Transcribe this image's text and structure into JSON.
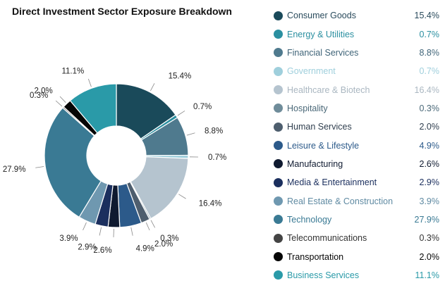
{
  "chart_data": {
    "type": "pie",
    "title": "Direct Investment Sector Exposure Breakdown",
    "donut": true,
    "slices": [
      {
        "label": "Consumer Goods",
        "value": 15.4,
        "display": "15.4%",
        "color": "#1a4a5a",
        "text_color": "#2a4b5c"
      },
      {
        "label": "Energy & Utilities",
        "value": 0.7,
        "display": "0.7%",
        "color": "#2a8fa0",
        "text_color": "#2a8fa0"
      },
      {
        "label": "Financial Services",
        "value": 8.8,
        "display": "8.8%",
        "color": "#4f7a8e",
        "text_color": "#3f6478"
      },
      {
        "label": "Government",
        "value": 0.7,
        "display": "0.7%",
        "color": "#9fcfdc",
        "text_color": "#9fcfdc"
      },
      {
        "label": "Healthcare & Biotech",
        "value": 16.4,
        "display": "16.4%",
        "color": "#b5c4cf",
        "text_color": "#aab7c1"
      },
      {
        "label": "Hospitality",
        "value": 0.3,
        "display": "0.3%",
        "color": "#6f8c9a",
        "text_color": "#4a6878"
      },
      {
        "label": "Human Services",
        "value": 2.0,
        "display": "2.0%",
        "color": "#4e5e6e",
        "text_color": "#2f3e4e"
      },
      {
        "label": "Leisure & Lifestyle",
        "value": 4.9,
        "display": "4.9%",
        "color": "#2c5a8a",
        "text_color": "#2c5a8a"
      },
      {
        "label": "Manufacturing",
        "value": 2.6,
        "display": "2.6%",
        "color": "#0f1a30",
        "text_color": "#0f1a30"
      },
      {
        "label": "Media & Entertainment",
        "value": 2.9,
        "display": "2.9%",
        "color": "#1b2f5e",
        "text_color": "#1b2f5e"
      },
      {
        "label": "Real Estate & Construction",
        "value": 3.9,
        "display": "3.9%",
        "color": "#6f98b0",
        "text_color": "#5f8aa2"
      },
      {
        "label": "Technology",
        "value": 27.9,
        "display": "27.9%",
        "color": "#3a7a94",
        "text_color": "#3a7a94"
      },
      {
        "label": "Telecommunications",
        "value": 0.3,
        "display": "0.3%",
        "color": "#444444",
        "text_color": "#333333"
      },
      {
        "label": "Transportation",
        "value": 2.0,
        "display": "2.0%",
        "color": "#050505",
        "text_color": "#050505"
      },
      {
        "label": "Business Services",
        "value": 11.1,
        "display": "11.1%",
        "color": "#2a9aa8",
        "text_color": "#2a9aa8"
      }
    ],
    "legend_position": "right"
  }
}
